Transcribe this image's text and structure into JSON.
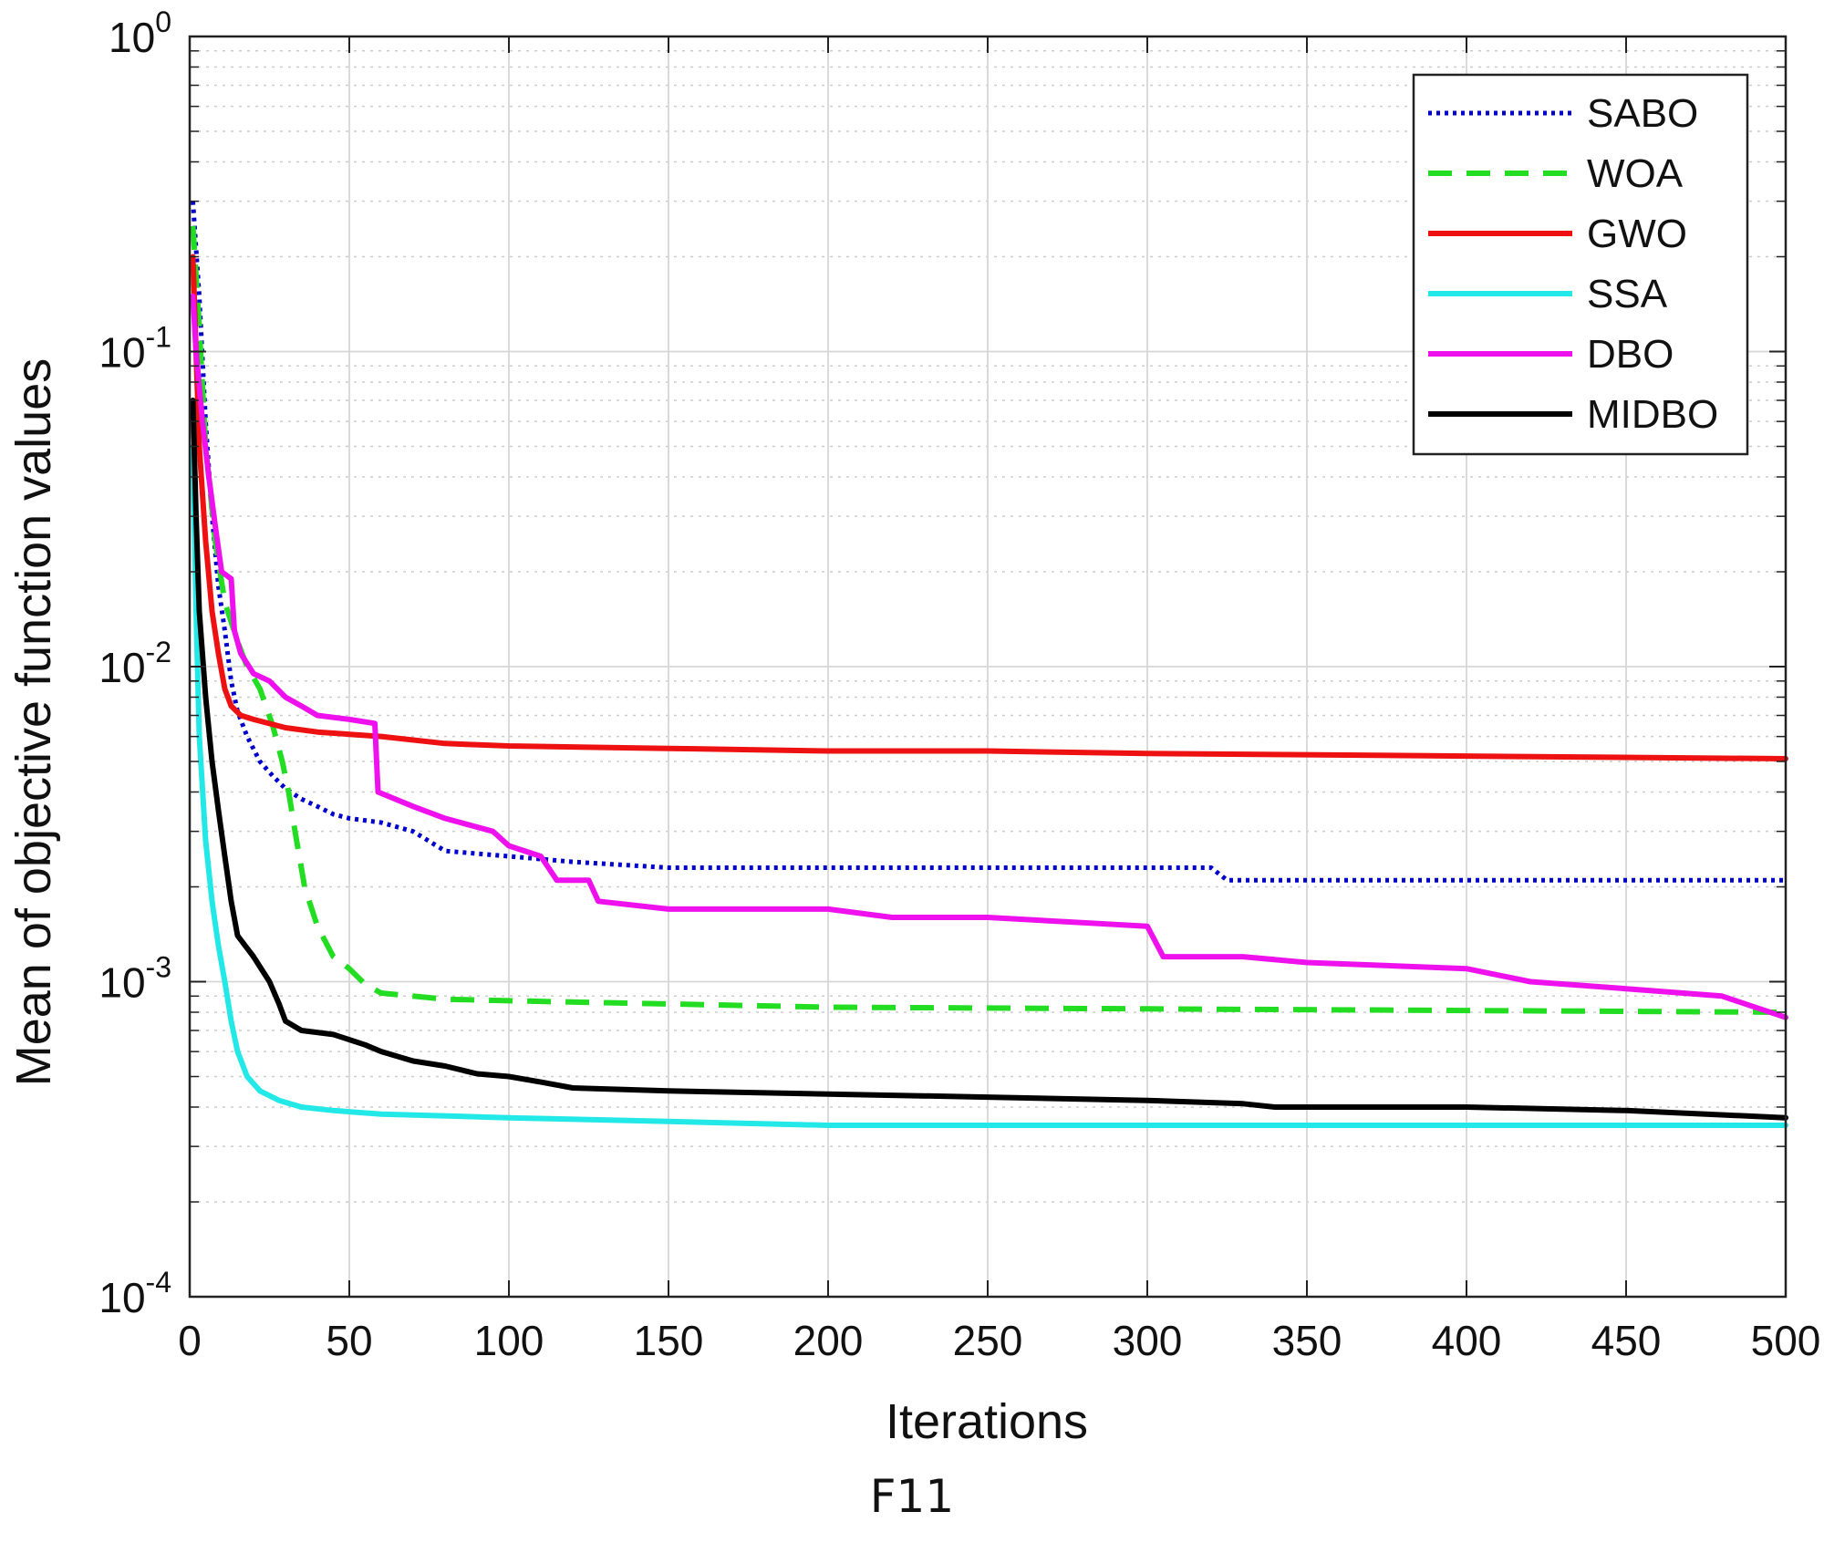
{
  "chart_data": {
    "type": "line",
    "title": "",
    "caption": "F11",
    "xlabel": "Iterations",
    "ylabel": "Mean of objective function values",
    "xscale": "linear",
    "yscale": "log",
    "xlim": [
      0,
      500
    ],
    "ylim": [
      0.0001,
      1
    ],
    "grid": true,
    "minor_grid": true,
    "legend_position": "top-right",
    "x_ticks": [
      0,
      50,
      100,
      150,
      200,
      250,
      300,
      350,
      400,
      450,
      500
    ],
    "x_tick_labels": [
      "0",
      "50",
      "100",
      "150",
      "200",
      "250",
      "300",
      "350",
      "400",
      "450",
      "500"
    ],
    "y_ticks": [
      {
        "value": 1,
        "base": "10",
        "exponent": "0"
      },
      {
        "value": 0.1,
        "base": "10",
        "exponent": "-1"
      },
      {
        "value": 0.01,
        "base": "10",
        "exponent": "-2"
      },
      {
        "value": 0.001,
        "base": "10",
        "exponent": "-3"
      },
      {
        "value": 0.0001,
        "base": "10",
        "exponent": "-4"
      }
    ],
    "series": [
      {
        "name": "SABO",
        "color": "#0000cc",
        "style": "dotted",
        "points": [
          [
            1,
            0.3
          ],
          [
            3,
            0.15
          ],
          [
            5,
            0.06
          ],
          [
            7,
            0.03
          ],
          [
            9,
            0.018
          ],
          [
            11,
            0.013
          ],
          [
            13,
            0.009
          ],
          [
            15,
            0.0072
          ],
          [
            18,
            0.006
          ],
          [
            22,
            0.005
          ],
          [
            26,
            0.0045
          ],
          [
            30,
            0.0041
          ],
          [
            35,
            0.0038
          ],
          [
            40,
            0.0036
          ],
          [
            45,
            0.0034
          ],
          [
            50,
            0.0033
          ],
          [
            60,
            0.0032
          ],
          [
            70,
            0.003
          ],
          [
            80,
            0.0026
          ],
          [
            100,
            0.0025
          ],
          [
            120,
            0.0024
          ],
          [
            150,
            0.0023
          ],
          [
            200,
            0.0023
          ],
          [
            300,
            0.0023
          ],
          [
            320,
            0.0023
          ],
          [
            325,
            0.0021
          ],
          [
            500,
            0.0021
          ]
        ]
      },
      {
        "name": "WOA",
        "color": "#22dd22",
        "style": "dashed",
        "points": [
          [
            1,
            0.25
          ],
          [
            3,
            0.12
          ],
          [
            5,
            0.05
          ],
          [
            8,
            0.025
          ],
          [
            11,
            0.016
          ],
          [
            15,
            0.012
          ],
          [
            18,
            0.01
          ],
          [
            22,
            0.0085
          ],
          [
            26,
            0.0065
          ],
          [
            29,
            0.005
          ],
          [
            31,
            0.004
          ],
          [
            33,
            0.003
          ],
          [
            36,
            0.002
          ],
          [
            40,
            0.0015
          ],
          [
            45,
            0.0012
          ],
          [
            50,
            0.0011
          ],
          [
            55,
            0.00098
          ],
          [
            60,
            0.00092
          ],
          [
            80,
            0.00088
          ],
          [
            100,
            0.00087
          ],
          [
            150,
            0.00085
          ],
          [
            200,
            0.00083
          ],
          [
            300,
            0.00082
          ],
          [
            400,
            0.00081
          ],
          [
            500,
            0.0008
          ]
        ]
      },
      {
        "name": "GWO",
        "color": "#ee1111",
        "style": "solid",
        "points": [
          [
            1,
            0.2
          ],
          [
            2,
            0.1
          ],
          [
            3,
            0.05
          ],
          [
            5,
            0.025
          ],
          [
            7,
            0.015
          ],
          [
            9,
            0.011
          ],
          [
            11,
            0.0085
          ],
          [
            13,
            0.0075
          ],
          [
            16,
            0.007
          ],
          [
            20,
            0.0068
          ],
          [
            30,
            0.0064
          ],
          [
            40,
            0.0062
          ],
          [
            50,
            0.0061
          ],
          [
            60,
            0.006
          ],
          [
            80,
            0.0057
          ],
          [
            100,
            0.0056
          ],
          [
            150,
            0.0055
          ],
          [
            200,
            0.0054
          ],
          [
            250,
            0.0054
          ],
          [
            300,
            0.0053
          ],
          [
            400,
            0.0052
          ],
          [
            500,
            0.0051
          ]
        ]
      },
      {
        "name": "SSA",
        "color": "#22e8e8",
        "style": "solid",
        "points": [
          [
            1,
            0.05
          ],
          [
            2,
            0.015
          ],
          [
            3,
            0.006
          ],
          [
            5,
            0.0028
          ],
          [
            7,
            0.0018
          ],
          [
            9,
            0.0013
          ],
          [
            11,
            0.001
          ],
          [
            13,
            0.00075
          ],
          [
            15,
            0.0006
          ],
          [
            18,
            0.0005
          ],
          [
            22,
            0.00045
          ],
          [
            28,
            0.00042
          ],
          [
            35,
            0.0004
          ],
          [
            45,
            0.00039
          ],
          [
            60,
            0.00038
          ],
          [
            100,
            0.00037
          ],
          [
            150,
            0.00036
          ],
          [
            200,
            0.00035
          ],
          [
            300,
            0.00035
          ],
          [
            400,
            0.00035
          ],
          [
            500,
            0.00035
          ]
        ]
      },
      {
        "name": "DBO",
        "color": "#ee11ee",
        "style": "solid",
        "points": [
          [
            1,
            0.15
          ],
          [
            2,
            0.1
          ],
          [
            4,
            0.06
          ],
          [
            6,
            0.04
          ],
          [
            8,
            0.028
          ],
          [
            10,
            0.02
          ],
          [
            13,
            0.019
          ],
          [
            14,
            0.013
          ],
          [
            16,
            0.011
          ],
          [
            20,
            0.0095
          ],
          [
            25,
            0.009
          ],
          [
            30,
            0.008
          ],
          [
            35,
            0.0075
          ],
          [
            40,
            0.007
          ],
          [
            50,
            0.0068
          ],
          [
            58,
            0.0066
          ],
          [
            59,
            0.004
          ],
          [
            70,
            0.0036
          ],
          [
            80,
            0.0033
          ],
          [
            95,
            0.003
          ],
          [
            100,
            0.0027
          ],
          [
            110,
            0.0025
          ],
          [
            115,
            0.0021
          ],
          [
            125,
            0.0021
          ],
          [
            128,
            0.0018
          ],
          [
            150,
            0.0017
          ],
          [
            200,
            0.0017
          ],
          [
            220,
            0.0016
          ],
          [
            250,
            0.0016
          ],
          [
            300,
            0.0015
          ],
          [
            305,
            0.0012
          ],
          [
            330,
            0.0012
          ],
          [
            350,
            0.00115
          ],
          [
            400,
            0.0011
          ],
          [
            420,
            0.001
          ],
          [
            450,
            0.00095
          ],
          [
            480,
            0.0009
          ],
          [
            500,
            0.00077
          ]
        ]
      },
      {
        "name": "MIDBO",
        "color": "#000000",
        "style": "solid",
        "points": [
          [
            1,
            0.07
          ],
          [
            2,
            0.03
          ],
          [
            3,
            0.015
          ],
          [
            5,
            0.008
          ],
          [
            7,
            0.005
          ],
          [
            9,
            0.0035
          ],
          [
            11,
            0.0025
          ],
          [
            13,
            0.0018
          ],
          [
            15,
            0.0014
          ],
          [
            20,
            0.0012
          ],
          [
            25,
            0.001
          ],
          [
            28,
            0.00085
          ],
          [
            30,
            0.00075
          ],
          [
            35,
            0.0007
          ],
          [
            45,
            0.00068
          ],
          [
            55,
            0.00063
          ],
          [
            60,
            0.0006
          ],
          [
            70,
            0.00056
          ],
          [
            80,
            0.00054
          ],
          [
            90,
            0.00051
          ],
          [
            100,
            0.0005
          ],
          [
            110,
            0.00048
          ],
          [
            120,
            0.00046
          ],
          [
            150,
            0.00045
          ],
          [
            200,
            0.00044
          ],
          [
            250,
            0.00043
          ],
          [
            300,
            0.00042
          ],
          [
            330,
            0.00041
          ],
          [
            340,
            0.0004
          ],
          [
            400,
            0.0004
          ],
          [
            450,
            0.00039
          ],
          [
            500,
            0.00037
          ]
        ]
      }
    ]
  }
}
